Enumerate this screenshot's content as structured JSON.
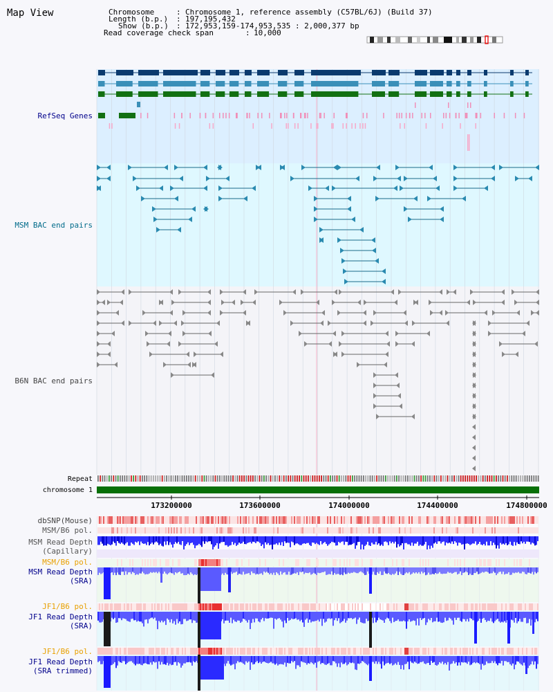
{
  "page": {
    "title": "Map View"
  },
  "info": {
    "chromosome_label": "Chromosome",
    "chromosome_value": "Chromosome 1, reference assembly (C57BL/6J) (Build 37)",
    "length_label": "Length (b.p.)",
    "length_value": "197,195,432",
    "show_label": "Show (b.p.)",
    "show_value": "172,953,159-174,953,535 : 2,000,377 bp",
    "coverage_label": "Read coverage check span",
    "coverage_value": "10,000"
  },
  "tracks": {
    "refseq": "RefSeq Genes",
    "msm_bac": "MSM BAC end pairs",
    "b6n_bac": "B6N BAC end pairs",
    "repeat": "Repeat",
    "chromosome": "chromosome 1",
    "dbsnp": "dbSNP(Mouse)",
    "msm_b6_pol_1": "MSM/B6 pol.",
    "msm_depth_cap_1": "MSM Read Depth",
    "msm_depth_cap_2": "(Capillary)",
    "msm_b6_pol_2": "MSM/B6 pol.",
    "msm_depth_sra_1": "MSM Read Depth",
    "msm_depth_sra_2": "(SRA)",
    "jf1_b6_pol_1": "JF1/B6 pol.",
    "jf1_depth_sra_1": "JF1 Read Depth",
    "jf1_depth_sra_2": "(SRA)",
    "jf1_b6_pol_2": "JF1/B6 pol.",
    "jf1_depth_trim_1": "JF1 Read Depth",
    "jf1_depth_trim_2": "(SRA trimmed)"
  },
  "axis": {
    "ticks": [
      "173200000",
      "173600000",
      "174000000",
      "174400000",
      "174800000"
    ]
  },
  "colors": {
    "navy_label": "#00008b",
    "teal_label": "#006b8a",
    "grey_label": "#444444",
    "orange_label": "#e8a000",
    "refseq_bg": "#dcefff",
    "msm_bac_bg": "#dff8ff",
    "chromosome_bar": "#087008",
    "depth_blue": "#1a1aff"
  }
}
